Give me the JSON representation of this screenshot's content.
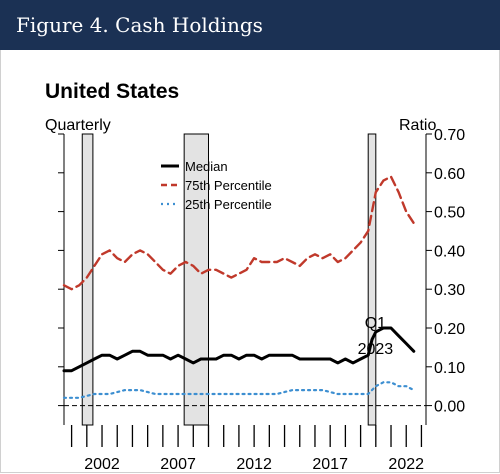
{
  "figure_title": "Figure 4. Cash Holdings",
  "chart_data": {
    "type": "line",
    "title": "United States",
    "x_axis_label": "Quarterly",
    "y_axis_label": "Ratio",
    "annotation": {
      "lines": [
        "Q1",
        "2023"
      ],
      "x": 2021.0
    },
    "xlim": [
      2000,
      2023.8
    ],
    "ylim": [
      -0.05,
      0.7
    ],
    "x_tick_labels": [
      {
        "label": "2002",
        "x": 2002
      },
      {
        "label": "2007",
        "x": 2007
      },
      {
        "label": "2012",
        "x": 2012
      },
      {
        "label": "2017",
        "x": 2017
      },
      {
        "label": "2022",
        "x": 2022
      }
    ],
    "y_ticks": [
      {
        "label": "0.00",
        "value": 0.0
      },
      {
        "label": "0.10",
        "value": 0.1
      },
      {
        "label": "0.20",
        "value": 0.2
      },
      {
        "label": "0.30",
        "value": 0.3
      },
      {
        "label": "0.40",
        "value": 0.4
      },
      {
        "label": "0.50",
        "value": 0.5
      },
      {
        "label": "0.60",
        "value": 0.6
      },
      {
        "label": "0.70",
        "value": 0.7
      }
    ],
    "zero_line": 0.0,
    "recessions": [
      {
        "start": 2001.2,
        "end": 2001.9
      },
      {
        "start": 2007.9,
        "end": 2009.5
      },
      {
        "start": 2020.0,
        "end": 2020.5
      }
    ],
    "grid": false,
    "legend_position": "top-center",
    "series": [
      {
        "name": "Median",
        "color": "#000000",
        "dash": "solid",
        "x": [
          2000.0,
          2000.5,
          2001.0,
          2001.5,
          2002.0,
          2002.5,
          2003.0,
          2003.5,
          2004.0,
          2004.5,
          2005.0,
          2005.5,
          2006.0,
          2006.5,
          2007.0,
          2007.5,
          2008.0,
          2008.5,
          2009.0,
          2009.5,
          2010.0,
          2010.5,
          2011.0,
          2011.5,
          2012.0,
          2012.5,
          2013.0,
          2013.5,
          2014.0,
          2014.5,
          2015.0,
          2015.5,
          2016.0,
          2016.5,
          2017.0,
          2017.5,
          2018.0,
          2018.5,
          2019.0,
          2019.5,
          2020.0,
          2020.25,
          2020.5,
          2021.0,
          2021.5,
          2022.0,
          2022.5,
          2023.0
        ],
        "y": [
          0.09,
          0.09,
          0.1,
          0.11,
          0.12,
          0.13,
          0.13,
          0.12,
          0.13,
          0.14,
          0.14,
          0.13,
          0.13,
          0.13,
          0.12,
          0.13,
          0.12,
          0.11,
          0.12,
          0.12,
          0.12,
          0.13,
          0.13,
          0.12,
          0.13,
          0.13,
          0.12,
          0.13,
          0.13,
          0.13,
          0.13,
          0.12,
          0.12,
          0.12,
          0.12,
          0.12,
          0.11,
          0.12,
          0.11,
          0.12,
          0.13,
          0.17,
          0.19,
          0.2,
          0.2,
          0.18,
          0.16,
          0.14
        ]
      },
      {
        "name": "75th Percentile",
        "color": "#c0392b",
        "dash": "dashed",
        "x": [
          2000.0,
          2000.5,
          2001.0,
          2001.5,
          2002.0,
          2002.5,
          2003.0,
          2003.5,
          2004.0,
          2004.5,
          2005.0,
          2005.5,
          2006.0,
          2006.5,
          2007.0,
          2007.5,
          2008.0,
          2008.5,
          2009.0,
          2009.5,
          2010.0,
          2010.5,
          2011.0,
          2011.5,
          2012.0,
          2012.5,
          2013.0,
          2013.5,
          2014.0,
          2014.5,
          2015.0,
          2015.5,
          2016.0,
          2016.5,
          2017.0,
          2017.5,
          2018.0,
          2018.5,
          2019.0,
          2019.5,
          2020.0,
          2020.25,
          2020.5,
          2021.0,
          2021.5,
          2022.0,
          2022.5,
          2023.0
        ],
        "y": [
          0.31,
          0.3,
          0.31,
          0.33,
          0.36,
          0.39,
          0.4,
          0.38,
          0.37,
          0.39,
          0.4,
          0.39,
          0.37,
          0.35,
          0.34,
          0.36,
          0.37,
          0.36,
          0.34,
          0.35,
          0.35,
          0.34,
          0.33,
          0.34,
          0.35,
          0.38,
          0.37,
          0.37,
          0.37,
          0.38,
          0.37,
          0.36,
          0.38,
          0.39,
          0.38,
          0.39,
          0.37,
          0.38,
          0.4,
          0.42,
          0.45,
          0.5,
          0.55,
          0.58,
          0.59,
          0.55,
          0.5,
          0.47
        ]
      },
      {
        "name": "25th Percentile",
        "color": "#3d8fd1",
        "dash": "dotted",
        "x": [
          2000.0,
          2001.0,
          2002.0,
          2003.0,
          2004.0,
          2005.0,
          2006.0,
          2007.0,
          2008.0,
          2009.0,
          2010.0,
          2011.0,
          2012.0,
          2013.0,
          2014.0,
          2015.0,
          2016.0,
          2017.0,
          2018.0,
          2019.0,
          2020.0,
          2020.5,
          2021.0,
          2021.5,
          2022.0,
          2022.5,
          2023.0
        ],
        "y": [
          0.02,
          0.02,
          0.03,
          0.03,
          0.04,
          0.04,
          0.03,
          0.03,
          0.03,
          0.03,
          0.03,
          0.03,
          0.03,
          0.03,
          0.03,
          0.04,
          0.04,
          0.04,
          0.03,
          0.03,
          0.03,
          0.05,
          0.06,
          0.06,
          0.05,
          0.05,
          0.04
        ]
      }
    ]
  }
}
